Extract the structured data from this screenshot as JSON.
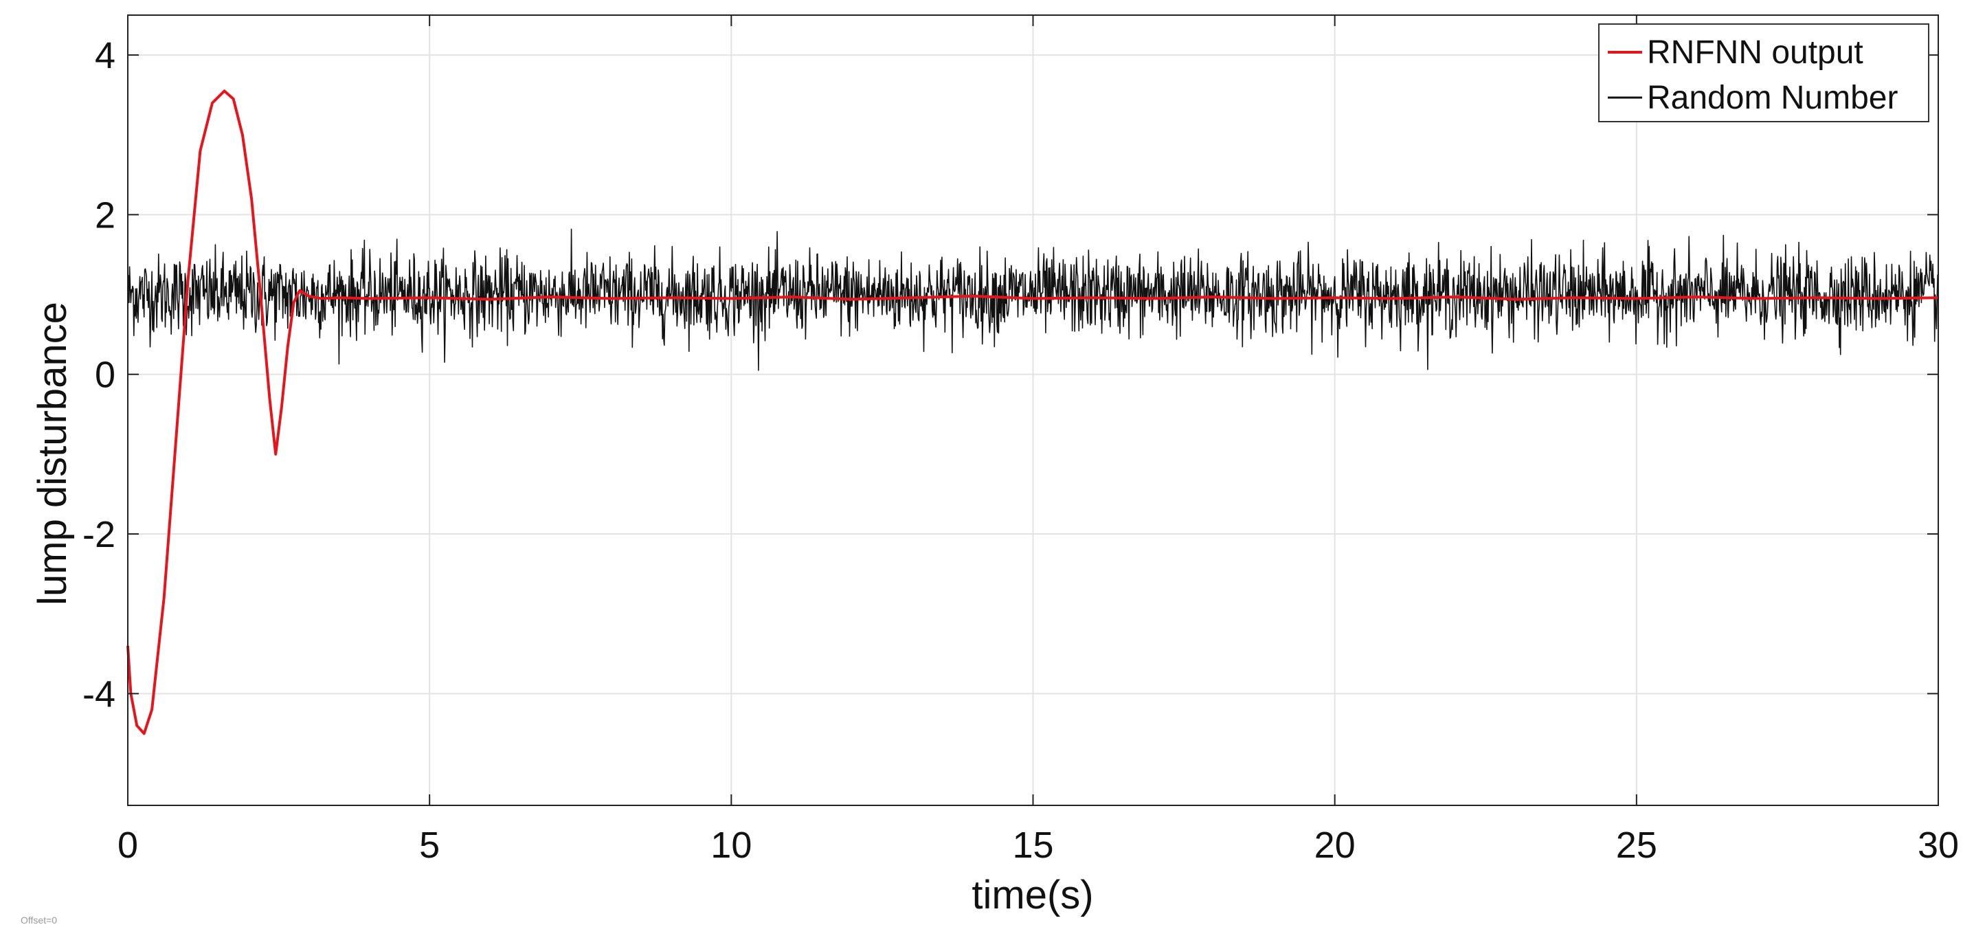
{
  "chart_data": {
    "type": "line",
    "title": "",
    "xlabel": "time(s)",
    "ylabel": "lump disturbance",
    "xlim": [
      0,
      30
    ],
    "ylim": [
      -5.4,
      4.5
    ],
    "xticks": [
      0,
      5,
      10,
      15,
      20,
      25,
      30
    ],
    "yticks": [
      -4,
      -2,
      0,
      2,
      4
    ],
    "xtick_labels": [
      "0",
      "5",
      "10",
      "15",
      "20",
      "25",
      "30"
    ],
    "ytick_labels": [
      "-4",
      "-2",
      "0",
      "2",
      "4"
    ],
    "grid": true,
    "legend_position": "top-right",
    "footnote": "Offset=0",
    "series": [
      {
        "name": "RNFNN output",
        "color": "#e8141c",
        "x": [
          0,
          0.05,
          0.15,
          0.27,
          0.4,
          0.6,
          0.8,
          1.0,
          1.2,
          1.4,
          1.6,
          1.75,
          1.9,
          2.05,
          2.2,
          2.35,
          2.45,
          2.55,
          2.65,
          2.75,
          2.85,
          3.0,
          3.2,
          3.5,
          4,
          5,
          6,
          7,
          8,
          9,
          10,
          11,
          12,
          13,
          14,
          15,
          16,
          17,
          18,
          19,
          20,
          21,
          22,
          23,
          24,
          25,
          26,
          27,
          28,
          29,
          30
        ],
        "y": [
          -3.4,
          -4.0,
          -4.4,
          -4.5,
          -4.2,
          -2.8,
          -0.8,
          1.2,
          2.8,
          3.4,
          3.55,
          3.45,
          3.0,
          2.2,
          1.0,
          -0.3,
          -1.0,
          -0.4,
          0.35,
          0.9,
          1.05,
          0.98,
          0.95,
          0.96,
          0.95,
          0.96,
          0.94,
          0.97,
          0.95,
          0.96,
          0.95,
          0.97,
          0.94,
          0.96,
          0.98,
          0.95,
          0.96,
          0.95,
          0.97,
          0.95,
          0.96,
          0.95,
          0.97,
          0.94,
          0.96,
          0.95,
          0.97,
          0.95,
          0.96,
          0.95,
          0.96
        ]
      },
      {
        "name": "Random Number",
        "color": "#111111",
        "mean": 1.0,
        "std": 0.25,
        "sample_time": 0.01,
        "min_observed": 0.05,
        "max_observed": 2.2
      }
    ]
  }
}
